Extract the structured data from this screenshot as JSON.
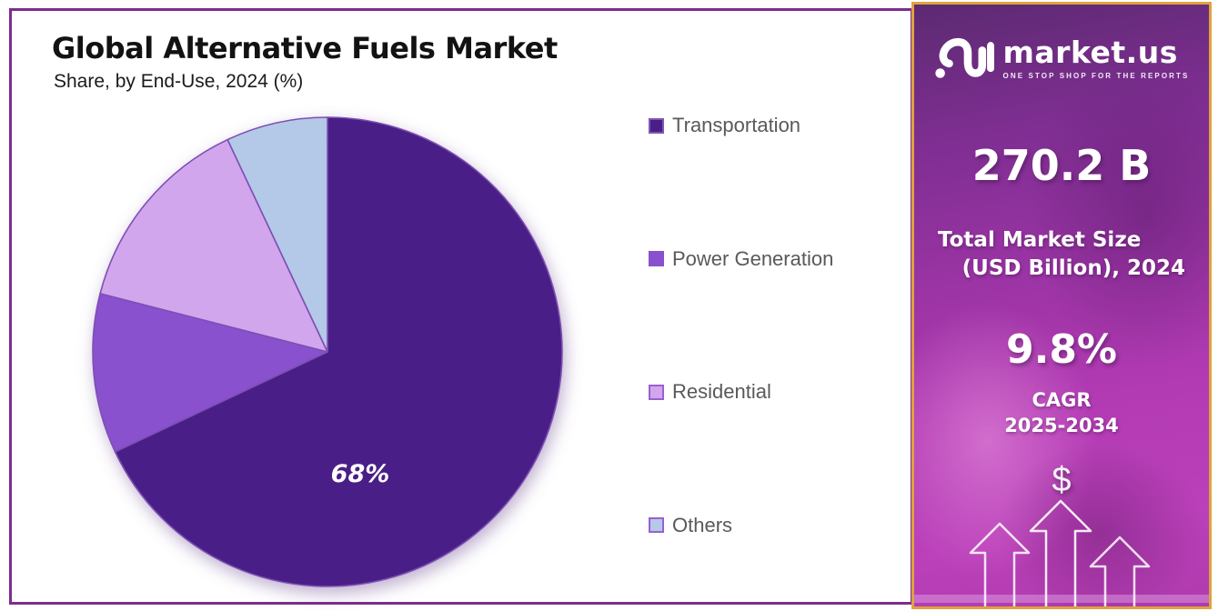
{
  "panel": {
    "title": "Global Alternative Fuels Market",
    "subtitle": "Share, by End-Use, 2024 (%)"
  },
  "chart_data": {
    "type": "pie",
    "title": "Global Alternative Fuels Market Share, by End-Use, 2024 (%)",
    "unit": "%",
    "start_angle_deg": 0,
    "direction": "clockwise",
    "legend_position": "right",
    "slices": [
      {
        "label": "Transportation",
        "value": 68,
        "color": "#4a1e87",
        "swatch_border": "#7e57b5",
        "data_label": "68%"
      },
      {
        "label": "Power Generation",
        "value": 11,
        "color": "#8951cd",
        "swatch_border": "#8951cd",
        "data_label": ""
      },
      {
        "label": "Residential",
        "value": 14,
        "color": "#d1a6ec",
        "swatch_border": "#9a5fd0",
        "data_label": ""
      },
      {
        "label": "Others",
        "value": 7,
        "color": "#b4c8e8",
        "swatch_border": "#9a5fd0",
        "data_label": ""
      }
    ],
    "slice_stroke_color": "#7d4fb5"
  },
  "sidebar": {
    "logo_text": "market.us",
    "logo_tagline": "ONE STOP SHOP FOR THE REPORTS",
    "market_size_value": "270.2 B",
    "market_size_label_line1": "Total Market Size",
    "market_size_label_line2": "(USD Billion), 2024",
    "cagr_value": "9.8%",
    "cagr_label_line1": "CAGR",
    "cagr_label_line2": "2025-2034",
    "dollar_symbol": "$"
  },
  "colors": {
    "panel_border": "#7d2c8d",
    "sidebar_border": "#dfa23f",
    "legend_text": "#58595b",
    "title_text": "#121212",
    "pie_label_text": "#ffffff",
    "sidebar_gradient_top": "#5c2a72",
    "sidebar_gradient_bottom": "#b03aae"
  }
}
